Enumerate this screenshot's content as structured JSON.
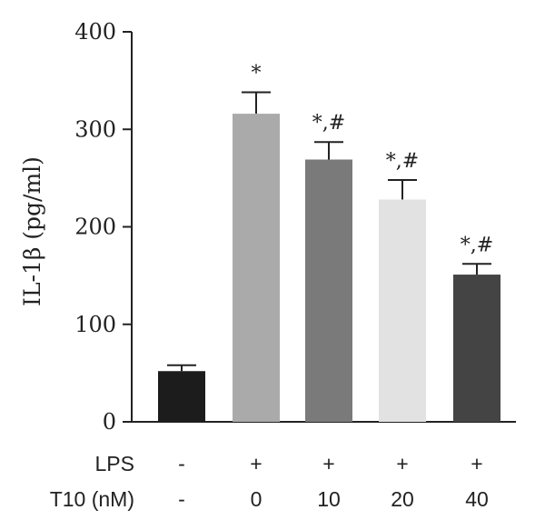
{
  "chart_data": {
    "type": "bar",
    "ylabel": "IL-1β (pg/ml)",
    "ylim": [
      0,
      400
    ],
    "yticks": [
      "0",
      "100",
      "200",
      "300",
      "400"
    ],
    "grid": false,
    "bars": [
      {
        "value": 52,
        "error": 6,
        "color": "#1c1c1c",
        "annotation": ""
      },
      {
        "value": 316,
        "error": 22,
        "color": "#aaaaaa",
        "annotation": "*"
      },
      {
        "value": 269,
        "error": 18,
        "color": "#7a7a7a",
        "annotation": "*,#"
      },
      {
        "value": 228,
        "error": 20,
        "color": "#e2e2e2",
        "annotation": "*,#"
      },
      {
        "value": 151,
        "error": 11,
        "color": "#444444",
        "annotation": "*,#"
      }
    ],
    "conditions": [
      {
        "label": "LPS",
        "values": [
          "-",
          "+",
          "+",
          "+",
          "+"
        ]
      },
      {
        "label": "T10 (nM)",
        "values": [
          "-",
          "0",
          "10",
          "20",
          "40"
        ]
      }
    ]
  }
}
